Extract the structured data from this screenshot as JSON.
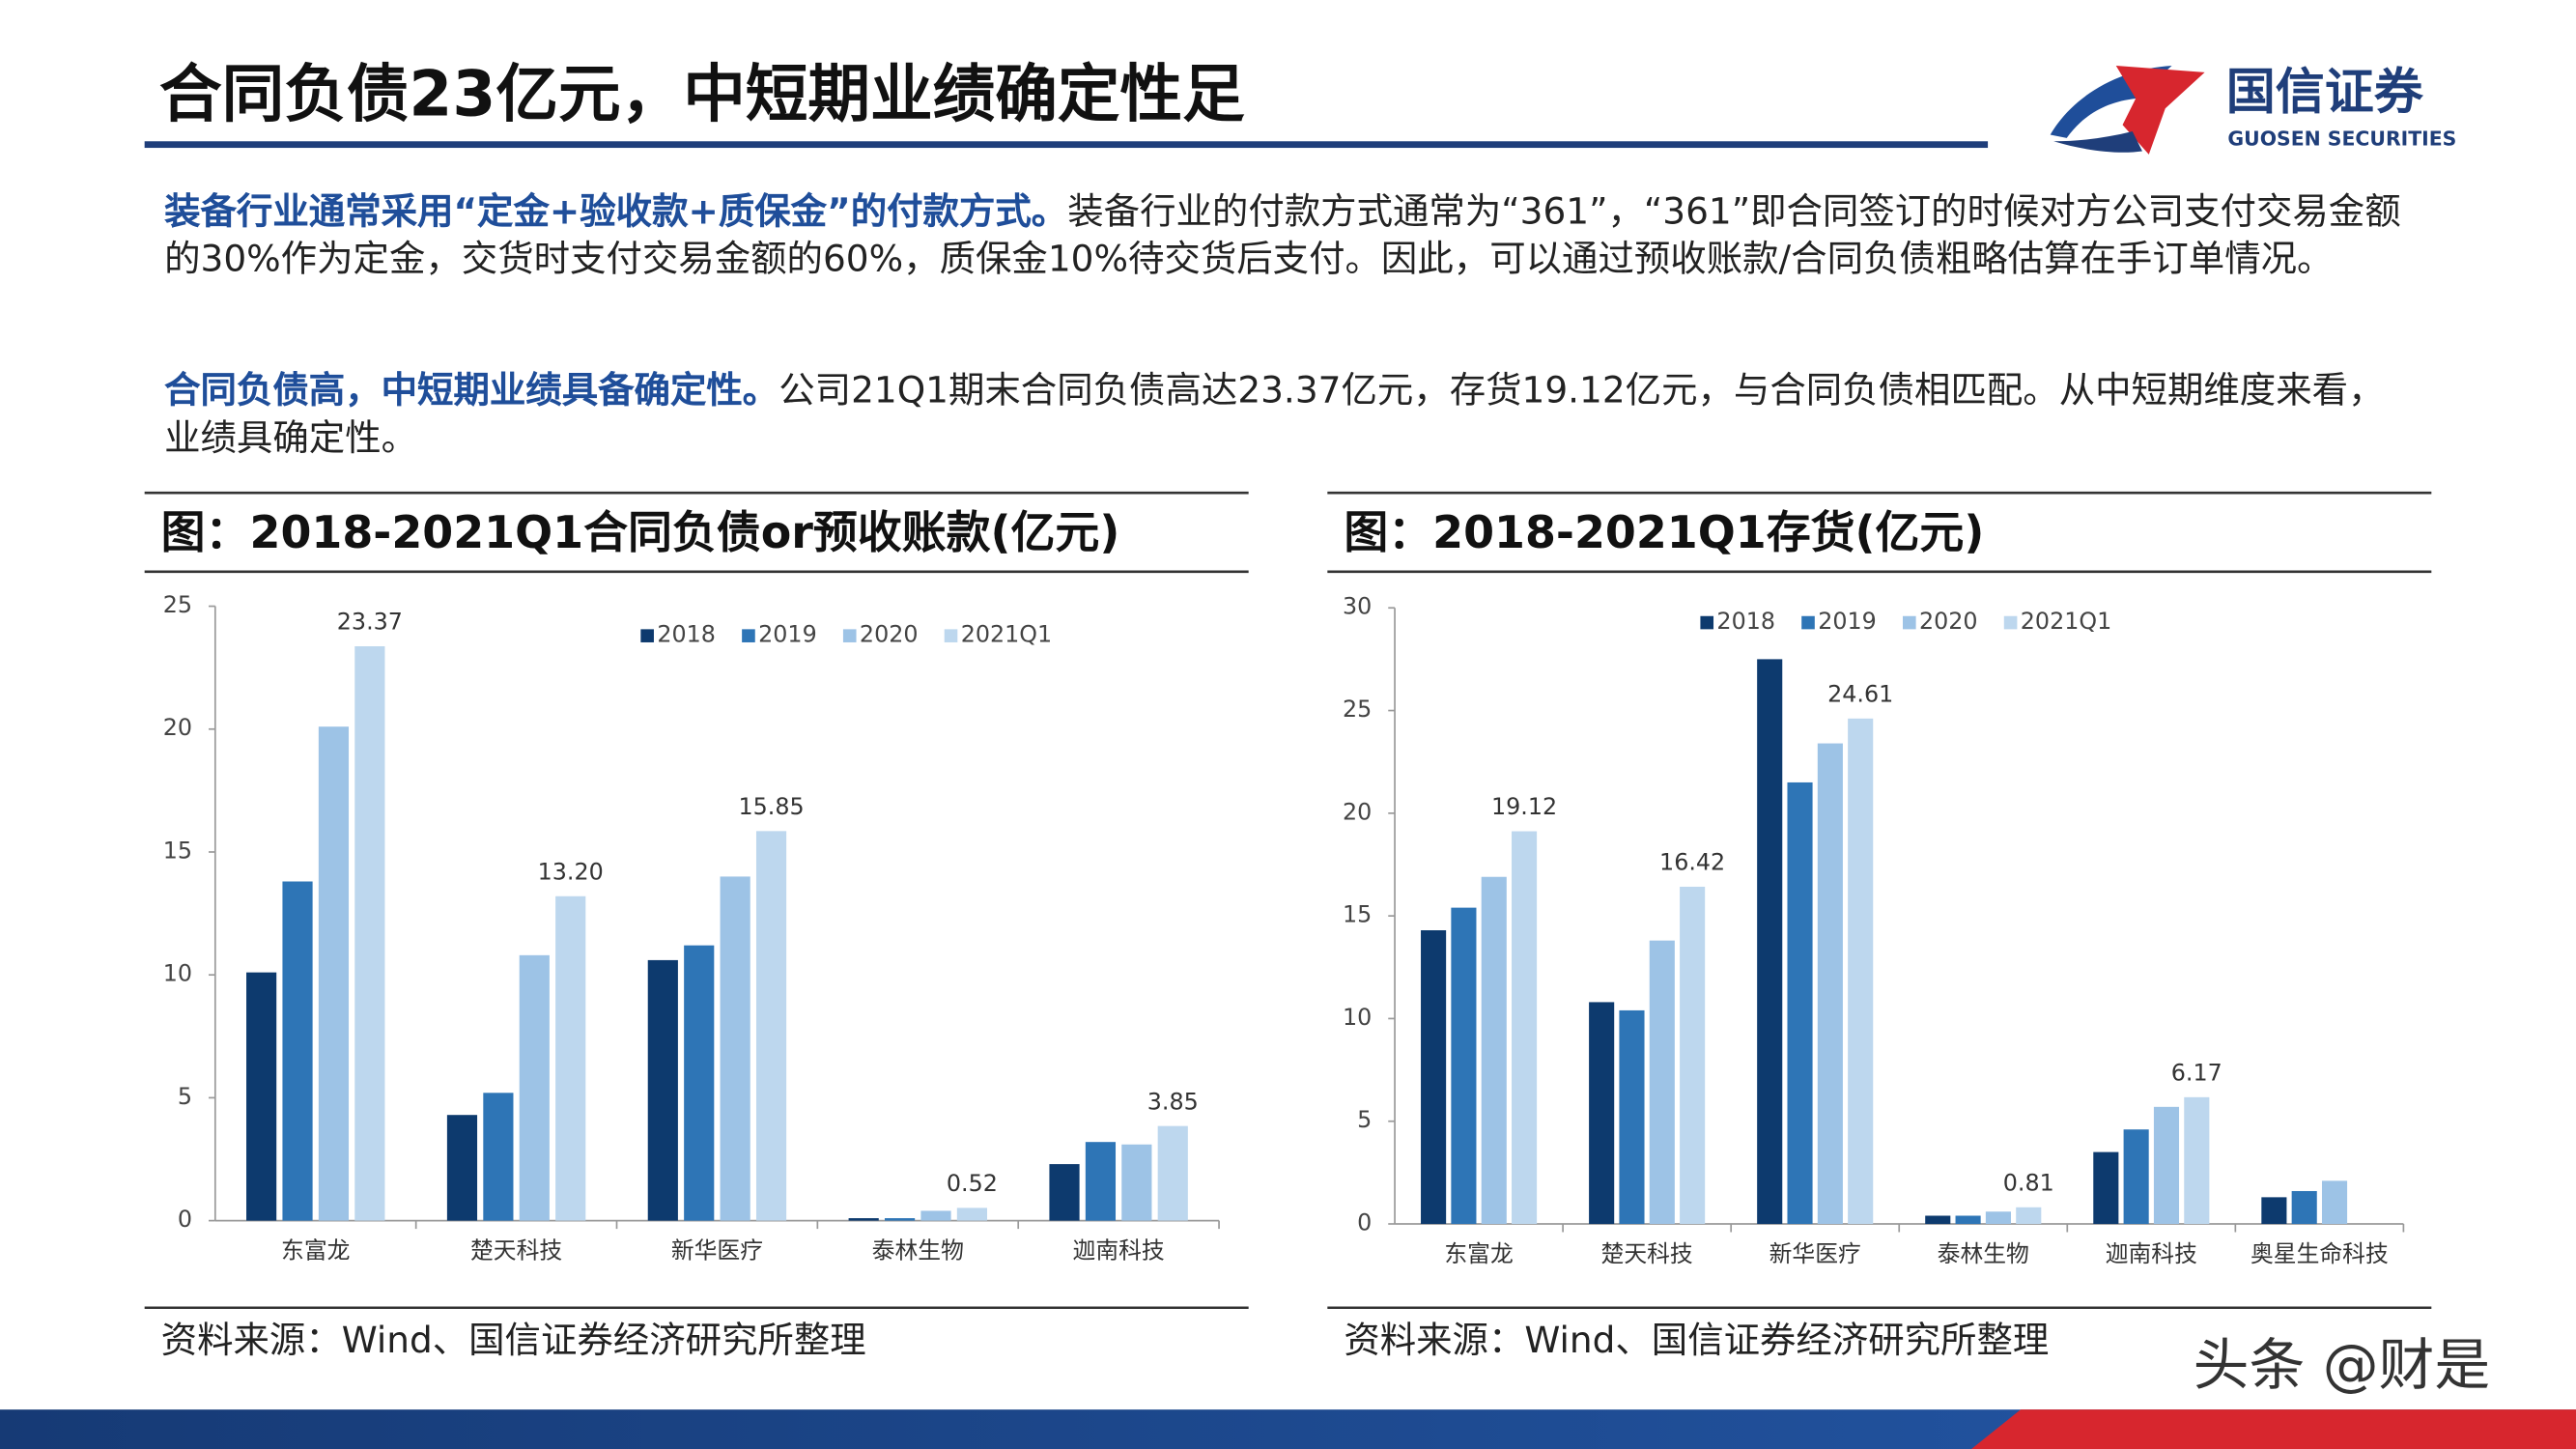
{
  "header": {
    "title": "合同负债23亿元，中短期业绩确定性足",
    "logo_text": "国信证券",
    "logo_subtext": "GUOSEN SECURITIES"
  },
  "paragraphs": [
    {
      "lead": "装备行业通常采用“定金+验收款+质保金”的付款方式。",
      "text": "装备行业的付款方式通常为“361”，“361”即合同签订的时候对方公司支付交易金额的30%作为定金，交货时支付交易金额的60%，质保金10%待交货后支付。因此，可以通过预收账款/合同负债粗略估算在手订单情况。"
    },
    {
      "lead": "合同负债高，中短期业绩具备确定性。",
      "text": "公司21Q1期末合同负债高达23.37亿元，存货19.12亿元，与合同负债相匹配。从中短期维度来看，业绩具确定性。"
    }
  ],
  "chart_data": [
    {
      "type": "bar",
      "title": "图：2018-2021Q1合同负债or预收账款(亿元)",
      "source": "资料来源：Wind、国信证券经济研究所整理",
      "categories": [
        "东富龙",
        "楚天科技",
        "新华医疗",
        "泰林生物",
        "迦南科技"
      ],
      "ylim": [
        0,
        25
      ],
      "yticks": [
        0,
        5,
        10,
        15,
        20,
        25
      ],
      "series": [
        {
          "name": "2018",
          "color": "#0d3a6e",
          "values": [
            10.1,
            4.3,
            10.6,
            0.1,
            2.3
          ]
        },
        {
          "name": "2019",
          "color": "#2e75b6",
          "values": [
            13.8,
            5.2,
            11.2,
            0.1,
            3.2
          ]
        },
        {
          "name": "2020",
          "color": "#9dc3e6",
          "values": [
            20.1,
            10.8,
            14.0,
            0.4,
            3.1
          ]
        },
        {
          "name": "2021Q1",
          "color": "#bdd7ee",
          "values": [
            23.37,
            13.2,
            15.85,
            0.52,
            3.85
          ],
          "value_labels": [
            "23.37",
            "13.20",
            "15.85",
            "0.52",
            "3.85"
          ]
        }
      ]
    },
    {
      "type": "bar",
      "title": "图：2018-2021Q1存货(亿元)",
      "source": "资料来源：Wind、国信证券经济研究所整理",
      "categories": [
        "东富龙",
        "楚天科技",
        "新华医疗",
        "泰林生物",
        "迦南科技",
        "奥星生命科技"
      ],
      "ylim": [
        0,
        30
      ],
      "yticks": [
        0,
        5,
        10,
        15,
        20,
        25,
        30
      ],
      "series": [
        {
          "name": "2018",
          "color": "#0d3a6e",
          "values": [
            14.3,
            10.8,
            27.5,
            0.4,
            3.5,
            1.3
          ]
        },
        {
          "name": "2019",
          "color": "#2e75b6",
          "values": [
            15.4,
            10.4,
            21.5,
            0.4,
            4.6,
            1.6
          ]
        },
        {
          "name": "2020",
          "color": "#9dc3e6",
          "values": [
            16.9,
            13.8,
            23.4,
            0.6,
            5.7,
            2.1
          ]
        },
        {
          "name": "2021Q1",
          "color": "#bdd7ee",
          "values": [
            19.12,
            16.42,
            24.61,
            0.81,
            6.17,
            null
          ],
          "value_labels": [
            "19.12",
            "16.42",
            "24.61",
            "0.81",
            "6.17",
            null
          ]
        }
      ]
    }
  ],
  "watermark": "头条 @财是"
}
